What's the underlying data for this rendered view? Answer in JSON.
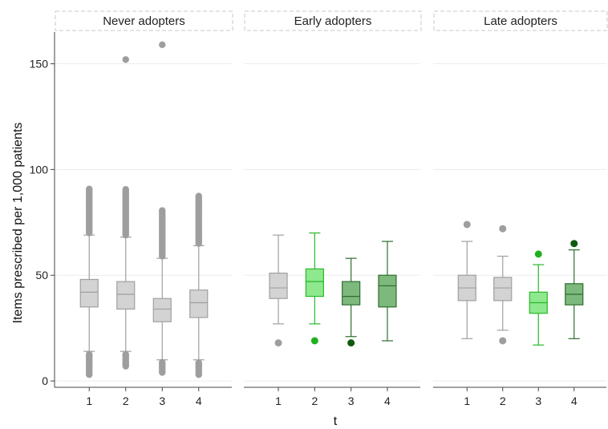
{
  "chart_data": {
    "type": "boxplot",
    "ylabel": "Items prescribed per 1,000 patients",
    "xlabel": "t",
    "ylim": [
      -3,
      165
    ],
    "yticks": [
      0,
      50,
      100,
      150
    ],
    "xticks": [
      "1",
      "2",
      "3",
      "4"
    ],
    "grid": "horizontal",
    "colors": {
      "grey_fill": "#d3d3d3",
      "grey_line": "#a0a0a0",
      "grey_dot": "#9e9e9e",
      "light_green_fill": "#8ee88e",
      "light_green_line": "#27b827",
      "light_green_dot": "#20b020",
      "mid_green_fill": "#7db87d",
      "mid_green_line": "#2e6e2e",
      "dark_dot": "#0e5a0e"
    },
    "panels": [
      {
        "title": "Never adopters",
        "boxes": [
          {
            "t": "1",
            "whisker_low": 14,
            "q1": 35,
            "median": 42,
            "q3": 48,
            "whisker_high": 69,
            "style": "grey",
            "outliers_high_range": [
              70,
              91
            ],
            "outliers_low_range": [
              3,
              13
            ]
          },
          {
            "t": "2",
            "whisker_low": 14,
            "q1": 34,
            "median": 41,
            "q3": 47,
            "whisker_high": 68,
            "style": "grey",
            "outliers_high_range": [
              69,
              91
            ],
            "outliers_low_range": [
              7,
              13
            ],
            "extra_outliers": [
              152
            ]
          },
          {
            "t": "3",
            "whisker_low": 10,
            "q1": 28,
            "median": 34,
            "q3": 39,
            "whisker_high": 58,
            "style": "grey",
            "outliers_high_range": [
              59,
              81
            ],
            "outliers_low_range": [
              4,
              9
            ],
            "extra_outliers": [
              159
            ]
          },
          {
            "t": "4",
            "whisker_low": 10,
            "q1": 30,
            "median": 37,
            "q3": 43,
            "whisker_high": 64,
            "style": "grey",
            "outliers_high_range": [
              65,
              88
            ],
            "outliers_low_range": [
              3,
              9
            ]
          }
        ]
      },
      {
        "title": "Early adopters",
        "boxes": [
          {
            "t": "1",
            "whisker_low": 27,
            "q1": 39,
            "median": 44,
            "q3": 51,
            "whisker_high": 69,
            "style": "grey",
            "outliers": [
              18
            ]
          },
          {
            "t": "2",
            "whisker_low": 27,
            "q1": 40,
            "median": 47,
            "q3": 53,
            "whisker_high": 70,
            "style": "light_green",
            "outliers": [
              19
            ]
          },
          {
            "t": "3",
            "whisker_low": 21,
            "q1": 36,
            "median": 40,
            "q3": 47,
            "whisker_high": 58,
            "style": "mid_green",
            "outliers": [
              18
            ]
          },
          {
            "t": "4",
            "whisker_low": 19,
            "q1": 35,
            "median": 45,
            "q3": 50,
            "whisker_high": 66,
            "style": "mid_green",
            "outliers": []
          }
        ]
      },
      {
        "title": "Late adopters",
        "boxes": [
          {
            "t": "1",
            "whisker_low": 20,
            "q1": 38,
            "median": 44,
            "q3": 50,
            "whisker_high": 66,
            "style": "grey",
            "outliers": [
              74
            ]
          },
          {
            "t": "2",
            "whisker_low": 24,
            "q1": 38,
            "median": 44,
            "q3": 49,
            "whisker_high": 59,
            "style": "grey",
            "outliers": [
              19,
              72
            ]
          },
          {
            "t": "3",
            "whisker_low": 17,
            "q1": 32,
            "median": 37,
            "q3": 42,
            "whisker_high": 55,
            "style": "light_green",
            "outliers": [
              60
            ]
          },
          {
            "t": "4",
            "whisker_low": 20,
            "q1": 36,
            "median": 41,
            "q3": 46,
            "whisker_high": 62,
            "style": "mid_green",
            "outliers": [
              65
            ]
          }
        ]
      }
    ]
  }
}
